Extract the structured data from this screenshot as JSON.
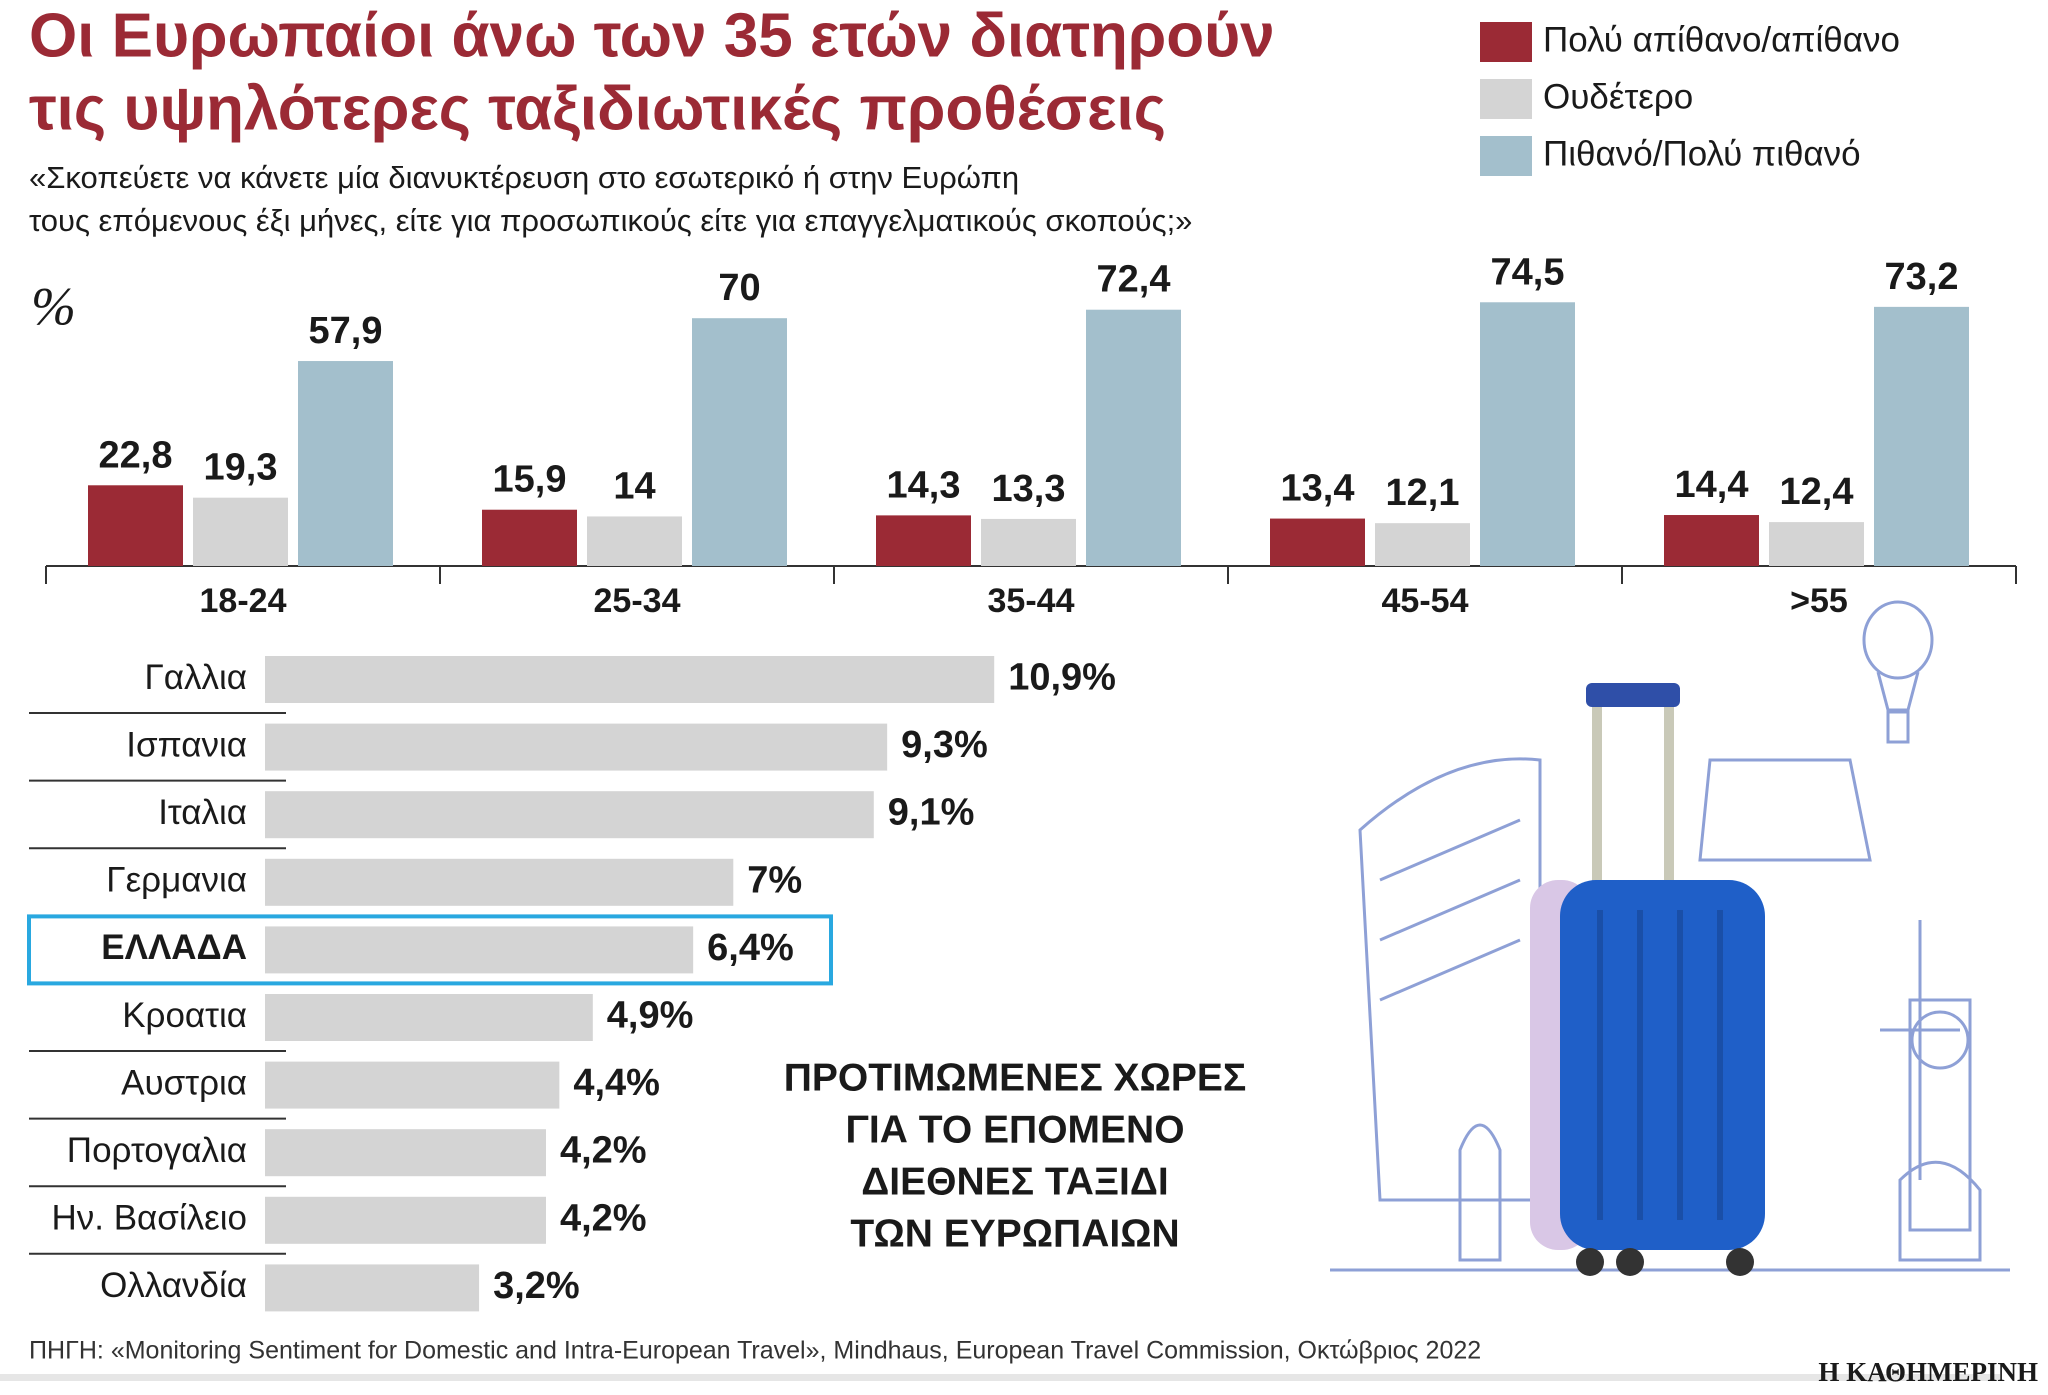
{
  "title": [
    "Οι Ευρωπαίοι άνω των 35 ετών διατηρούν",
    "τις υψηλότερες ταξιδιωτικές προθέσεις"
  ],
  "subtitle": [
    "«Σκοπεύετε να κάνετε μία διανυκτέρευση στο εσωτερικό ή στην Ευρώπη",
    "τους επόμενους έξι μήνες, είτε για προσωπικούς είτε για επαγγελματικούς σκοπούς;»"
  ],
  "source": "ΠΗΓΗ: «Monitoring Sentiment for Domestic and Intra-European Travel», Mindhaus, European Travel Commission, Οκτώβριος 2022",
  "logo": "Η ΚΑΘΗΜΕΡΙΝΗ",
  "chart_data": [
    {
      "type": "bar",
      "unit": "%",
      "categories": [
        "18-24",
        "25-34",
        "35-44",
        "45-54",
        ">55"
      ],
      "series": [
        {
          "name": "Πολύ απίθανο/απίθανο",
          "color": "#9b2a35",
          "values": [
            22.8,
            15.9,
            14.3,
            13.4,
            14.4
          ],
          "value_labels": [
            "22,8",
            "15,9",
            "14,3",
            "13,4",
            "14,4"
          ]
        },
        {
          "name": "Ουδέτερο",
          "color": "#d4d4d4",
          "values": [
            19.3,
            14,
            13.3,
            12.1,
            12.4
          ],
          "value_labels": [
            "19,3",
            "14",
            "13,3",
            "12,1",
            "12,4"
          ]
        },
        {
          "name": "Πιθανό/Πολύ πιθανό",
          "color": "#a3bfcc",
          "values": [
            57.9,
            70,
            72.4,
            74.5,
            73.2
          ],
          "value_labels": [
            "57,9",
            "70",
            "72,4",
            "74,5",
            "73,2"
          ]
        }
      ]
    },
    {
      "type": "barh",
      "title": [
        "ΠΡΟΤΙΜΩΜΕΝΕΣ ΧΩΡΕΣ",
        "ΓΙΑ ΤΟ ΕΠΟΜΕΝΟ",
        "ΔΙΕΘΝΕΣ ΤΑΞΙΔΙ",
        "ΤΩΝ ΕΥΡΩΠΑΙΩΝ"
      ],
      "categories": [
        "Γαλλια",
        "Ισπανια",
        "Ιταλια",
        "Γερμανια",
        "ΕΛΛΑΔΑ",
        "Κροατια",
        "Αυστρια",
        "Πορτογαλια",
        "Ην. Βασίλειο",
        "Ολλανδία"
      ],
      "values": [
        10.9,
        9.3,
        9.1,
        7,
        6.4,
        4.9,
        4.4,
        4.2,
        4.2,
        3.2
      ],
      "value_labels": [
        "10,9%",
        "9,3%",
        "9,1%",
        "7%",
        "6,4%",
        "4,9%",
        "4,4%",
        "4,2%",
        "4,2%",
        "3,2%"
      ],
      "color": "#d4d4d4",
      "highlight": 4,
      "highlight_color": "#29a8e0"
    }
  ]
}
